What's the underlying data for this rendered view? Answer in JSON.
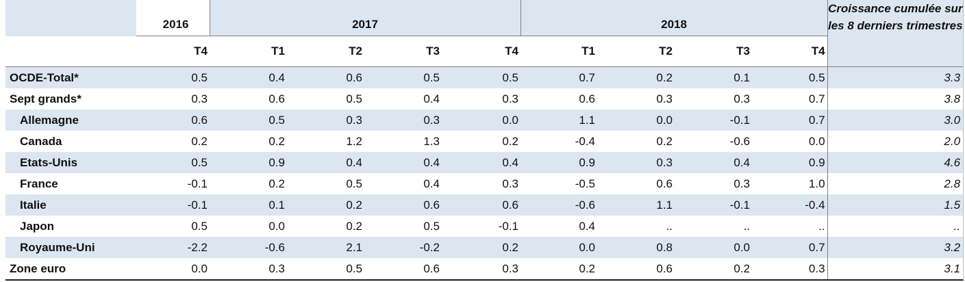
{
  "header": {
    "years": [
      "2016",
      "2017",
      "2018"
    ],
    "quarters": [
      "T4",
      "T1",
      "T2",
      "T3",
      "T4",
      "T1",
      "T2",
      "T3",
      "T4"
    ],
    "last_col": "Croissance cumulée sur les 8 derniers trimestres"
  },
  "rows": [
    {
      "label": "OCDE-Total*",
      "values": [
        "0.5",
        "0.4",
        "0.6",
        "0.5",
        "0.5",
        "0.7",
        "0.2",
        "0.1",
        "0.5"
      ],
      "cum": "3.3"
    },
    {
      "label": "Sept grands*",
      "values": [
        "0.3",
        "0.6",
        "0.5",
        "0.4",
        "0.3",
        "0.6",
        "0.3",
        "0.3",
        "0.7"
      ],
      "cum": "3.8"
    },
    {
      "label": "Allemagne",
      "values": [
        "0.6",
        "0.5",
        "0.3",
        "0.3",
        "0.0",
        "1.1",
        "0.0",
        "-0.1",
        "0.7"
      ],
      "cum": "3.0"
    },
    {
      "label": "Canada",
      "values": [
        "0.2",
        "0.2",
        "1.2",
        "1.3",
        "0.2",
        "-0.4",
        "0.2",
        "-0.6",
        "0.0"
      ],
      "cum": "2.0"
    },
    {
      "label": "Etats-Unis",
      "values": [
        "0.5",
        "0.9",
        "0.4",
        "0.4",
        "0.4",
        "0.9",
        "0.3",
        "0.4",
        "0.9"
      ],
      "cum": "4.6"
    },
    {
      "label": "France",
      "values": [
        "-0.1",
        "0.2",
        "0.5",
        "0.4",
        "0.3",
        "-0.5",
        "0.6",
        "0.3",
        "1.0"
      ],
      "cum": "2.8"
    },
    {
      "label": "Italie",
      "values": [
        "-0.1",
        "0.1",
        "0.2",
        "0.6",
        "0.6",
        "-0.6",
        "1.1",
        "-0.1",
        "-0.4"
      ],
      "cum": "1.5"
    },
    {
      "label": "Japon",
      "values": [
        "0.5",
        "0.0",
        "0.2",
        "0.5",
        "-0.1",
        "0.4",
        "..",
        "..",
        ".."
      ],
      "cum": ".."
    },
    {
      "label": "Royaume-Uni",
      "values": [
        "-2.2",
        "-0.6",
        "2.1",
        "-0.2",
        "0.2",
        "0.0",
        "0.8",
        "0.0",
        "0.7"
      ],
      "cum": "3.2"
    },
    {
      "label": "Zone euro",
      "values": [
        "0.0",
        "0.3",
        "0.5",
        "0.6",
        "0.3",
        "0.2",
        "0.6",
        "0.2",
        "0.3"
      ],
      "cum": "3.1"
    }
  ]
}
